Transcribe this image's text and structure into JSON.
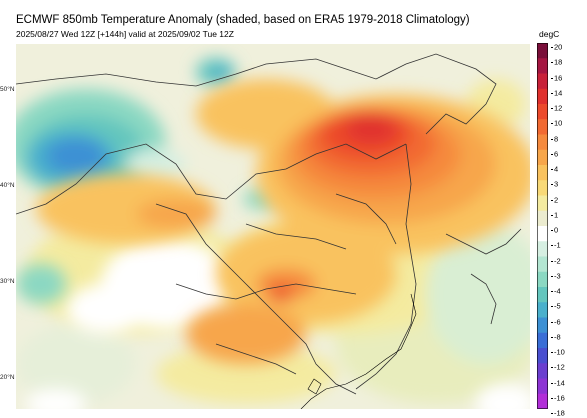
{
  "header": {
    "title": "ECMWF 850mb Temperature Anomaly (shaded, based on ERA5 1979-2018 Climatology)",
    "subtitle": "2025/08/27 Wed 12Z [+144h] valid at 2025/09/02 Tue 12Z"
  },
  "map": {
    "lat_labels": [
      "50°N",
      "40°N",
      "30°N",
      "20°N"
    ]
  },
  "colorbar": {
    "unit": "degC",
    "ticks": [
      "20",
      "18",
      "16",
      "14",
      "12",
      "10",
      "8",
      "6",
      "4",
      "3",
      "2",
      "1",
      "0",
      "-1",
      "-2",
      "-3",
      "-4",
      "-5",
      "-6",
      "-8",
      "-10",
      "-12",
      "-14",
      "-16",
      "-18"
    ],
    "colors": [
      "#7a0f3a",
      "#a51642",
      "#c8213a",
      "#e0302e",
      "#ec4a2c",
      "#f26a33",
      "#f58a3e",
      "#f7a64b",
      "#f9c25e",
      "#f8d977",
      "#f4eba0",
      "#ececd0",
      "#ffffff",
      "#d6efe2",
      "#b3e6d2",
      "#8bd8c2",
      "#64c6be",
      "#4ab0cc",
      "#3c90d4",
      "#3a6ed6",
      "#4a4fd0",
      "#6b3fcf",
      "#8d34d4",
      "#b12ed8"
    ]
  }
}
